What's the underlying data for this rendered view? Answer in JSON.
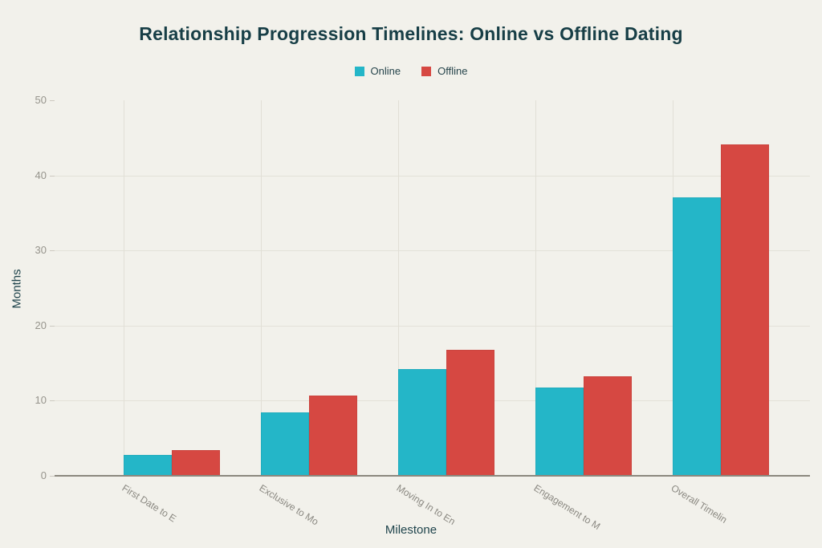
{
  "page": {
    "background": "#f2f1eb"
  },
  "chart_data": {
    "type": "bar",
    "title": "Relationship Progression Timelines: Online vs Offline Dating",
    "xlabel": "Milestone",
    "ylabel": "Months",
    "categories": [
      "First Date to E",
      "Exclusive to Mo",
      "Moving In to En",
      "Engagement to M",
      "Overall Timelin"
    ],
    "series": [
      {
        "name": "Online",
        "color": "#24b6c8",
        "values": [
          2.8,
          8.4,
          14.2,
          11.7,
          37.1
        ]
      },
      {
        "name": "Offline",
        "color": "#d64842",
        "values": [
          3.4,
          10.7,
          16.8,
          13.2,
          44.1
        ]
      }
    ],
    "ylim": [
      0,
      50
    ],
    "yticks": [
      0,
      10,
      20,
      30,
      40,
      50
    ],
    "grid": {
      "horizontal_gridline_ticks": [
        10,
        20,
        30,
        40
      ],
      "vertical_gridline_per_category": true
    },
    "legend_position": "top-center",
    "colors": {
      "title": "#173e46",
      "axis_title": "#1f444c",
      "tick_text": "#96948c",
      "x_tick_text": "#8b8982",
      "gridline": "#e3e1d8",
      "axis_line": "#8b887e"
    }
  }
}
